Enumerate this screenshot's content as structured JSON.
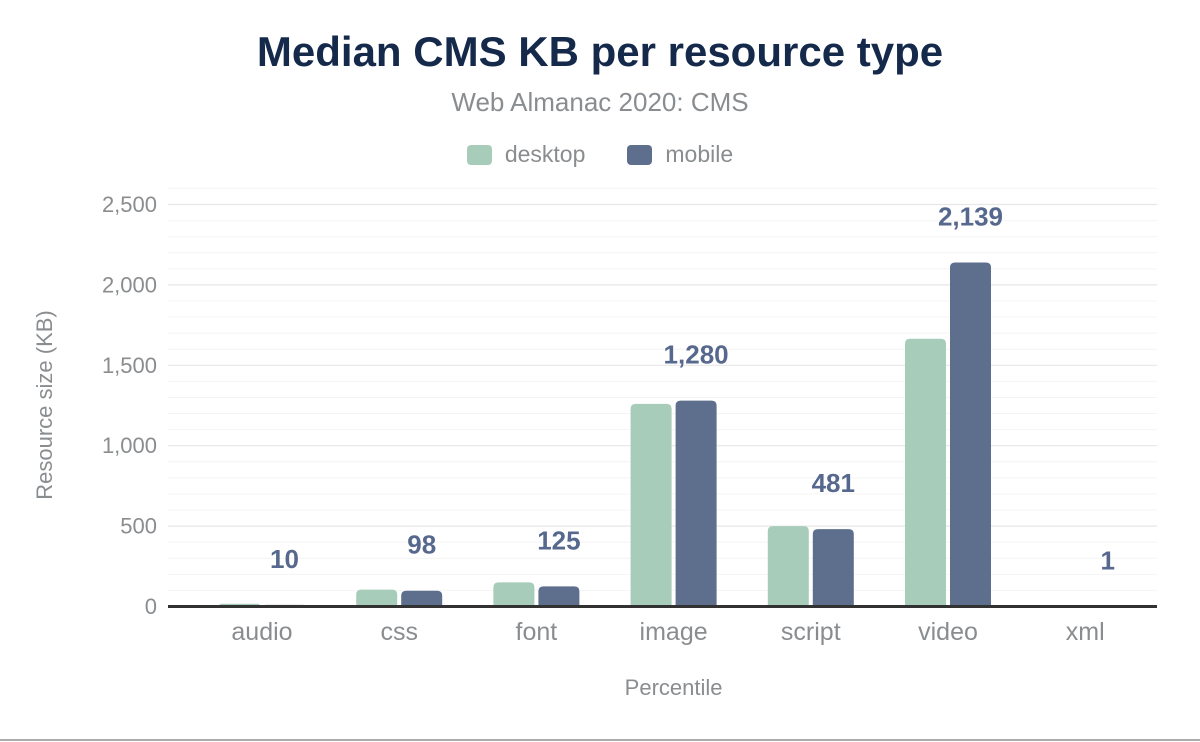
{
  "title": "Median CMS KB per resource type",
  "subtitle": "Web Almanac 2020: CMS",
  "legend": {
    "items": [
      {
        "label": "desktop",
        "color": "#a8ccba"
      },
      {
        "label": "mobile",
        "color": "#5d6f8d"
      }
    ]
  },
  "chart_data": {
    "type": "bar",
    "title": "Median CMS KB per resource type",
    "subtitle": "Web Almanac 2020: CMS",
    "categories": [
      "audio",
      "css",
      "font",
      "image",
      "script",
      "video",
      "xml"
    ],
    "series": [
      {
        "name": "desktop",
        "color": "#a8ccba",
        "values": [
          17,
          105,
          150,
          1260,
          500,
          1665,
          1
        ]
      },
      {
        "name": "mobile",
        "color": "#5d6f8d",
        "values": [
          10,
          98,
          125,
          1280,
          481,
          2139,
          1
        ],
        "data_labels": [
          "10",
          "98",
          "125",
          "1,280",
          "481",
          "2,139",
          "1"
        ]
      }
    ],
    "xlabel": "Percentile",
    "ylabel": "Resource size (KB)",
    "ylim": [
      0,
      2600
    ],
    "yticks": [
      0,
      500,
      1000,
      1500,
      2000,
      2500
    ],
    "ytick_labels": [
      "0",
      "500",
      "1,000",
      "1,500",
      "2,000",
      "2,500"
    ],
    "grid": {
      "enabled": true,
      "major_every": 500,
      "minor_every": 100
    },
    "legend_position": "top"
  },
  "colors": {
    "title": "#15294b",
    "muted_text": "#8a8d90",
    "axis_line": "#323232",
    "grid_major": "#e7e7e7",
    "grid_minor": "#f4f4f4",
    "data_label": "#56688d"
  }
}
